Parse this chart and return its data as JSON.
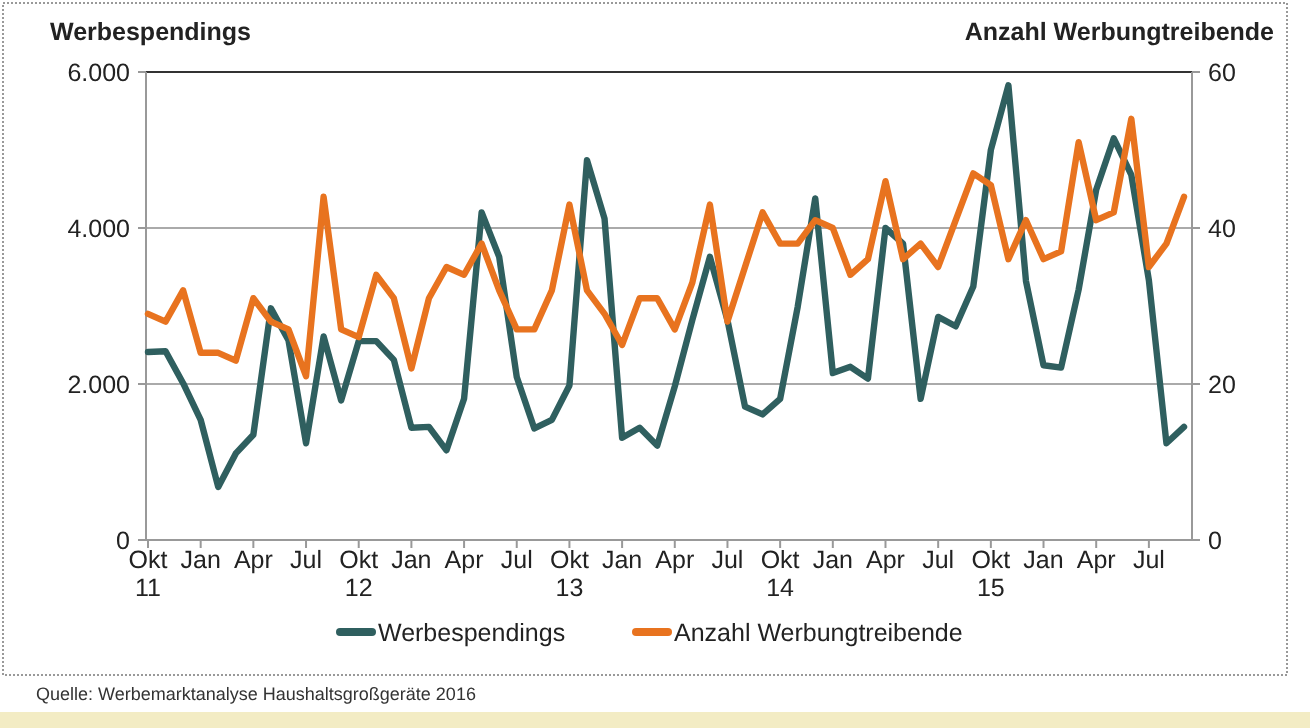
{
  "chart_data": {
    "type": "line",
    "ylabel": "Werbespendings",
    "y2label": "Anzahl Werbungtreibende",
    "categories": [
      "Okt 11",
      null,
      null,
      "Jan",
      null,
      null,
      "Apr",
      null,
      null,
      "Jul",
      null,
      null,
      "Okt 12",
      null,
      null,
      "Jan",
      null,
      null,
      "Apr",
      null,
      null,
      "Jul",
      null,
      null,
      "Okt 13",
      null,
      null,
      "Jan",
      null,
      null,
      "Apr",
      null,
      null,
      "Jul",
      null,
      null,
      "Okt 14",
      null,
      null,
      "Jan",
      null,
      null,
      "Apr",
      null,
      null,
      "Jul",
      null,
      null,
      "Okt 15",
      null,
      null,
      "Jan",
      null,
      null,
      "Apr",
      null,
      null,
      "Jul",
      null,
      null
    ],
    "series": [
      {
        "name": "Werbespendings",
        "color": "#2f5f5f",
        "values": [
          2410,
          2420,
          2010,
          1540,
          680,
          1110,
          1350,
          2970,
          2560,
          1240,
          2610,
          1790,
          2550,
          2550,
          2310,
          1440,
          1450,
          1150,
          1810,
          4200,
          3630,
          2090,
          1430,
          1540,
          1980,
          4870,
          4120,
          1310,
          1440,
          1210,
          1970,
          2820,
          3630,
          2820,
          1710,
          1610,
          1810,
          2990,
          4380,
          2140,
          2220,
          2070,
          4000,
          3800,
          1810,
          2860,
          2740,
          3250,
          5000,
          5830,
          3320,
          2240,
          2210,
          3210,
          4490,
          5150,
          4680,
          3330,
          1240,
          1450
        ]
      },
      {
        "name": "Anzahl Werbungtreibende",
        "color": "#e8731f",
        "axis": "y2",
        "values": [
          29,
          28,
          32,
          24,
          24,
          23,
          31,
          28,
          27,
          21,
          44,
          27,
          26,
          34,
          31,
          22,
          31,
          35,
          34,
          38,
          32,
          27,
          27,
          32,
          43,
          32,
          29,
          25,
          31,
          31,
          27,
          33,
          43,
          28,
          35,
          42,
          38,
          38,
          41,
          40,
          34,
          36,
          46,
          36,
          38,
          35,
          41,
          47,
          45.5,
          36,
          41,
          36,
          37,
          51,
          41,
          42,
          54,
          35,
          38,
          44
        ]
      }
    ],
    "ylim": [
      0,
      6000
    ],
    "yticks": [
      {
        "value": 0,
        "label": "0"
      },
      {
        "value": 2000,
        "label": "2.000"
      },
      {
        "value": 4000,
        "label": "4.000"
      },
      {
        "value": 6000,
        "label": "6.000"
      }
    ],
    "y2lim": [
      0,
      60
    ],
    "y2ticks": [
      0,
      20,
      40,
      60
    ],
    "grid": "y",
    "legend": "bottom",
    "line_style": "solid",
    "annotations": [
      "Quelle: Werbemarktanalyse Haushaltsgroßgeräte 2016"
    ]
  }
}
